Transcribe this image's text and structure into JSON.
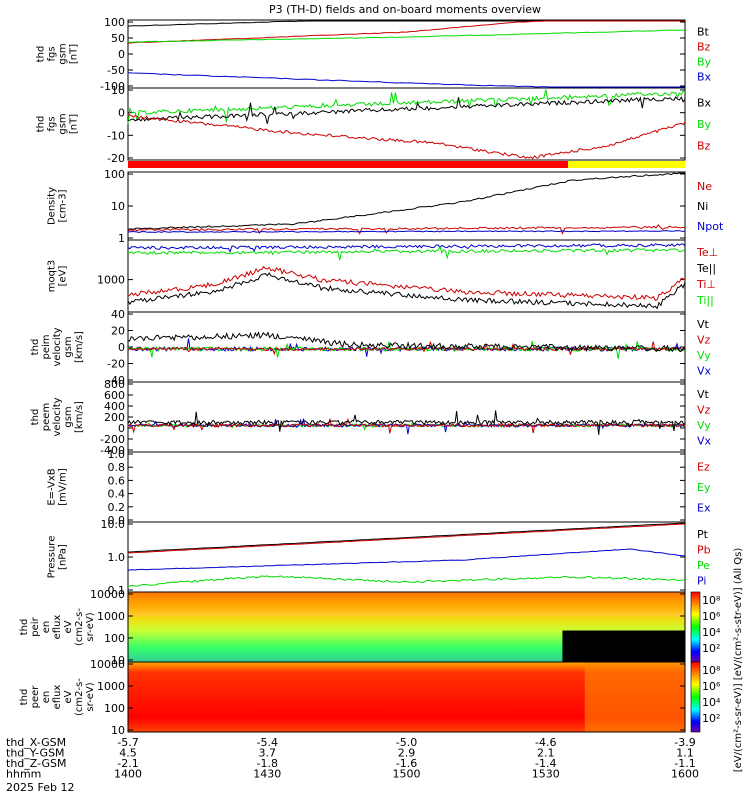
{
  "title": "P3 (TH-D) fields and on-board moments overview",
  "date": "2025 Feb 12",
  "colors": {
    "black": "#000000",
    "red": "#cc0000",
    "green": "#00dd00",
    "blue": "#0000cc",
    "yellow": "#ffff00",
    "brightred": "#ff0000"
  },
  "colorbar": {
    "label": "[eV/(cm²-s-sr-eV)]",
    "label2": "[eV/(cm²-s-str-eV)] (All Qs)",
    "ticks": [
      "10⁸",
      "10⁶",
      "10⁴",
      "10²"
    ]
  },
  "chart_data": {
    "type": "line",
    "x_axis": {
      "rows": [
        {
          "label": "thd_X-GSM",
          "values": [
            "-5.7",
            "-5.4",
            "-5.0",
            "-4.6",
            "-3.9"
          ]
        },
        {
          "label": "thd_Y-GSM",
          "values": [
            "4.5",
            "3.7",
            "2.9",
            "2.1",
            "1.1"
          ]
        },
        {
          "label": "thd_Z-GSM",
          "values": [
            "-2.1",
            "-1.8",
            "-1.6",
            "-1.4",
            "-1.1"
          ]
        },
        {
          "label": "hhmm",
          "values": [
            "1400",
            "1430",
            "1500",
            "1530",
            "1600"
          ]
        }
      ]
    },
    "panels": [
      {
        "id": "fgs",
        "ylabel": [
          "thd",
          "fgs",
          "gsm",
          "[nT]"
        ],
        "yticks": [
          "100",
          "50",
          "0",
          "-50",
          "-100"
        ],
        "ylim": [
          -100,
          100
        ],
        "legend": [
          "Bt",
          "Bz",
          "By",
          "Bx"
        ]
      },
      {
        "id": "fgs_dsl",
        "ylabel": [
          "thd",
          "fgs",
          "gsm",
          "[nT]"
        ],
        "yticks": [
          "10",
          "0",
          "-10",
          "-20"
        ],
        "ylim": [
          -28,
          12
        ],
        "legend": [
          "Bx",
          "By",
          "Bz"
        ]
      },
      {
        "id": "density",
        "ylabel": [
          "Density",
          "[cm-3]"
        ],
        "yticks": [
          "100",
          "10",
          "1"
        ],
        "scale": "log",
        "legend": [
          "Ne",
          "Ni",
          "Npot"
        ]
      },
      {
        "id": "temp",
        "ylabel": [
          "moqt3",
          "[eV]"
        ],
        "yticks": [
          "1000"
        ],
        "scale": "log",
        "legend": [
          "Te⊥",
          "Te||",
          "Ti⊥",
          "Ti||"
        ]
      },
      {
        "id": "vi",
        "ylabel": [
          "thd",
          "peim",
          "velocity",
          "gsm",
          "[km/s]"
        ],
        "yticks": [
          "40",
          "20",
          "0",
          "-20",
          "-40"
        ],
        "ylim": [
          -40,
          40
        ],
        "legend": [
          "Vt",
          "Vz",
          "Vy",
          "Vx"
        ]
      },
      {
        "id": "ve",
        "ylabel": [
          "thd",
          "peem",
          "velocity",
          "gsm",
          "[km/s]"
        ],
        "yticks": [
          "800",
          "600",
          "400",
          "200",
          "0",
          "-200",
          "-400"
        ],
        "ylim": [
          -400,
          800
        ],
        "legend": [
          "Vt",
          "Vz",
          "Vy",
          "Vx"
        ]
      },
      {
        "id": "efield",
        "ylabel": [
          "E=-VxB",
          "[mV/m]"
        ],
        "yticks": [
          "1.0",
          "0.8",
          "0.6",
          "0.4",
          "0.2",
          "0.0"
        ],
        "ylim": [
          0,
          1
        ],
        "legend": [
          "Ez",
          "Ey",
          "Ex"
        ]
      },
      {
        "id": "pressure",
        "ylabel": [
          "Pressure",
          "[nPa]"
        ],
        "yticks": [
          "10.0",
          "1.0",
          "0.1"
        ],
        "scale": "log",
        "legend": [
          "Pt",
          "Pb",
          "Pe",
          "Pi"
        ]
      },
      {
        "id": "ion_spec",
        "ylabel": [
          "thd",
          "peir",
          "en",
          "eflux",
          "eV",
          "(cm2-s-",
          "sr-eV)"
        ],
        "yticks": [
          "10000",
          "1000",
          "100",
          "10"
        ],
        "scale": "log"
      },
      {
        "id": "el_spec",
        "ylabel": [
          "thd",
          "peer",
          "en",
          "eflux",
          "eV",
          "(cm2-s-",
          "sr-eV)"
        ],
        "yticks": [
          "10000",
          "1000",
          "100",
          "10"
        ],
        "scale": "log"
      }
    ]
  }
}
